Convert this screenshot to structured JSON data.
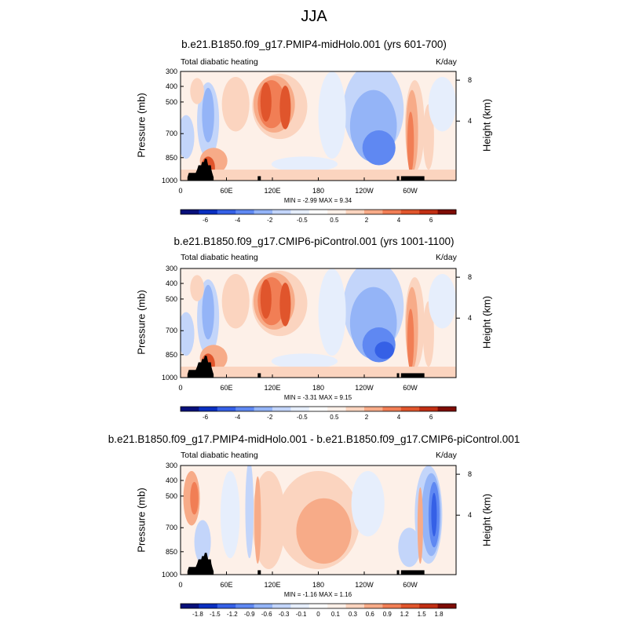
{
  "main_title": "JJA",
  "chart_data": [
    {
      "type": "heatmap",
      "title": "b.e21.B1850.f09_g17.PMIP4-midHolo.001 (yrs 601-700)",
      "subtitle_left": "Total diabatic heating",
      "subtitle_right": "K/day",
      "ylabel": "Pressure (mb)",
      "ylabel_right": "Height (km)",
      "x_ticks": [
        "0",
        "60E",
        "120E",
        "180",
        "120W",
        "60W"
      ],
      "y_ticks": [
        "300",
        "400",
        "500",
        "700",
        "850",
        "1000"
      ],
      "y_right_ticks": [
        "8",
        "4"
      ],
      "ylim": [
        1000,
        300
      ],
      "stats": "MIN =  -2.99  MAX =   9.34",
      "colorbar_labels": [
        "-6",
        "-4",
        "-2",
        "-0.5",
        "0.5",
        "2",
        "4",
        "6"
      ]
    },
    {
      "type": "heatmap",
      "title": "b.e21.B1850.f09_g17.CMIP6-piControl.001 (yrs 1001-1100)",
      "subtitle_left": "Total diabatic heating",
      "subtitle_right": "K/day",
      "ylabel": "Pressure (mb)",
      "ylabel_right": "Height (km)",
      "x_ticks": [
        "0",
        "60E",
        "120E",
        "180",
        "120W",
        "60W"
      ],
      "y_ticks": [
        "300",
        "400",
        "500",
        "700",
        "850",
        "1000"
      ],
      "y_right_ticks": [
        "8",
        "4"
      ],
      "ylim": [
        1000,
        300
      ],
      "stats": "MIN =  -3.31  MAX =   9.15",
      "colorbar_labels": [
        "-6",
        "-4",
        "-2",
        "-0.5",
        "0.5",
        "2",
        "4",
        "6"
      ]
    },
    {
      "type": "heatmap",
      "title": "b.e21.B1850.f09_g17.PMIP4-midHolo.001 - b.e21.B1850.f09_g17.CMIP6-piControl.001",
      "subtitle_left": "Total diabatic heating",
      "subtitle_right": "K/day",
      "ylabel": "Pressure (mb)",
      "ylabel_right": "Height (km)",
      "x_ticks": [
        "0",
        "60E",
        "120E",
        "180",
        "120W",
        "60W"
      ],
      "y_ticks": [
        "300",
        "400",
        "500",
        "700",
        "850",
        "1000"
      ],
      "y_right_ticks": [
        "8",
        "4"
      ],
      "ylim": [
        1000,
        300
      ],
      "stats": "MIN =  -1.16  MAX =   1.16",
      "colorbar_labels": [
        "-1.8",
        "-1.5",
        "-1.2",
        "-0.9",
        "-0.6",
        "-0.3",
        "-0.1",
        "0",
        "0.1",
        "0.3",
        "0.6",
        "0.9",
        "1.2",
        "1.5",
        "1.8"
      ]
    }
  ],
  "colors": {
    "blue_1": "#08107a",
    "blue_2": "#0a2fc0",
    "blue_3": "#3560e6",
    "blue_4": "#5f88f2",
    "blue_5": "#94b4f7",
    "blue_6": "#c3d5fa",
    "blue_7": "#e6eefc",
    "red_1": "#fdf0e8",
    "red_2": "#fbd4bf",
    "red_3": "#f7ab88",
    "red_4": "#f17e55",
    "red_5": "#e0552c",
    "red_6": "#c12f14",
    "red_7": "#7e0c05",
    "terrain": "#000000"
  }
}
